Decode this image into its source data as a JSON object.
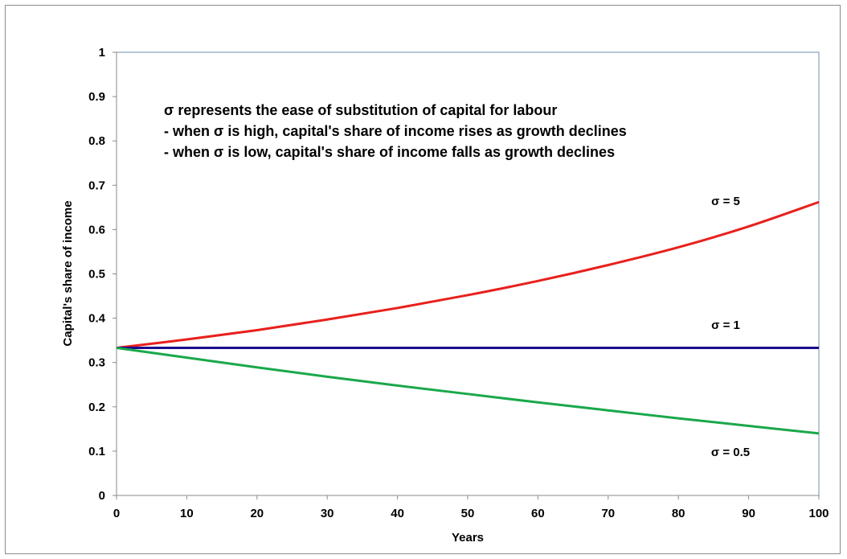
{
  "chart_data": {
    "type": "line",
    "title": "",
    "xlabel": "Years",
    "ylabel": "Capital's share of income",
    "xlim": [
      0,
      100
    ],
    "ylim": [
      0,
      1
    ],
    "x_ticks": [
      "0",
      "10",
      "20",
      "30",
      "40",
      "50",
      "60",
      "70",
      "80",
      "90",
      "100"
    ],
    "y_ticks": [
      "0",
      "0.1",
      "0.2",
      "0.3",
      "0.4",
      "0.5",
      "0.6",
      "0.7",
      "0.8",
      "0.9",
      "1"
    ],
    "grid": false,
    "legend": "none",
    "x": [
      0,
      10,
      20,
      30,
      40,
      50,
      60,
      70,
      80,
      90,
      100
    ],
    "series": [
      {
        "name": "σ = 5",
        "color": "#e8201c",
        "values": [
          0.333,
          0.352,
          0.373,
          0.397,
          0.423,
          0.452,
          0.484,
          0.52,
          0.56,
          0.607,
          0.662
        ]
      },
      {
        "name": "σ = 1",
        "color": "#1a0a8c",
        "values": [
          0.333,
          0.333,
          0.333,
          0.333,
          0.333,
          0.333,
          0.333,
          0.333,
          0.333,
          0.333,
          0.333
        ]
      },
      {
        "name": "σ = 0.5",
        "color": "#1aa84a",
        "values": [
          0.333,
          0.311,
          0.289,
          0.268,
          0.248,
          0.229,
          0.21,
          0.192,
          0.174,
          0.157,
          0.14
        ]
      }
    ],
    "annotations": [
      "σ represents the ease of substitution of capital for labour",
      "- when σ is high, capital's share of income rises as growth declines",
      "- when σ is low, capital's share of income falls as growth declines"
    ]
  }
}
